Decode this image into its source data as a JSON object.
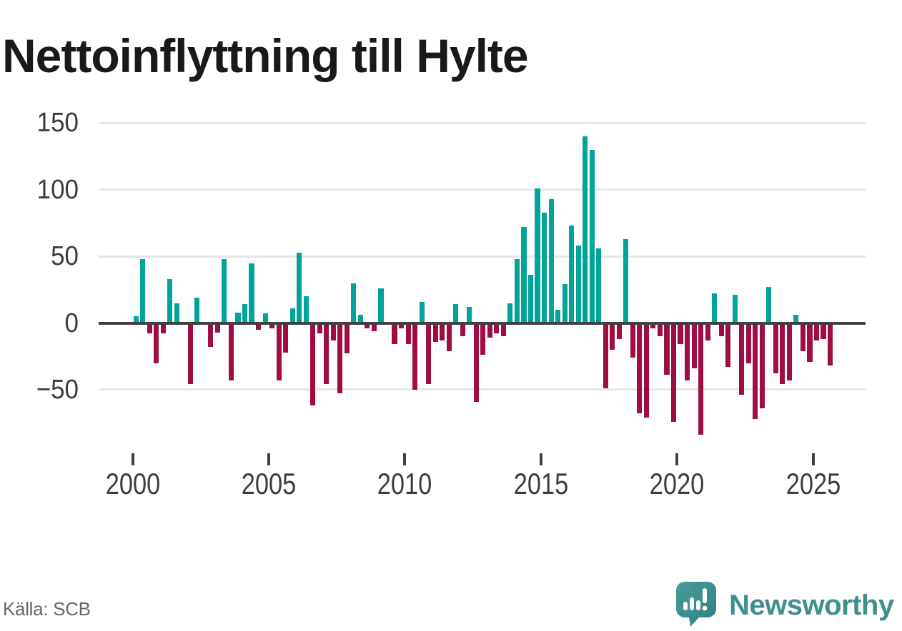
{
  "title": "Nettoinflyttning till Hylte",
  "source": "Källa: SCB",
  "branding": {
    "name": "Newsworthy",
    "logo_icon": "speech-bubble-bar-chart-icon",
    "color": "#3f8f8f"
  },
  "chart_data": {
    "type": "bar",
    "title": "Nettoinflyttning till Hylte",
    "frequency": "quarterly",
    "x_start": "2000-Q1",
    "x_end": "2025-Q3",
    "x_tick_labels": [
      "2000",
      "2005",
      "2010",
      "2015",
      "2020",
      "2025"
    ],
    "y_ticks": [
      150,
      100,
      50,
      0,
      -50
    ],
    "y_tick_labels": [
      "150",
      "100",
      "50",
      "0",
      "−50"
    ],
    "ylim": [
      -90,
      165
    ],
    "grid": "horizontal",
    "legend": "none",
    "positive_color": "#01a49b",
    "negative_color": "#a00d45",
    "values_by_year": [
      {
        "year": 2000,
        "q": [
          5,
          48,
          -8,
          -30
        ]
      },
      {
        "year": 2001,
        "q": [
          -8,
          33,
          15,
          0
        ]
      },
      {
        "year": 2002,
        "q": [
          -46,
          19,
          0,
          -18
        ]
      },
      {
        "year": 2003,
        "q": [
          -7,
          48,
          -43,
          8
        ]
      },
      {
        "year": 2004,
        "q": [
          14,
          45,
          -5,
          7
        ]
      },
      {
        "year": 2005,
        "q": [
          -4,
          -43,
          -22,
          11
        ]
      },
      {
        "year": 2006,
        "q": [
          53,
          20,
          -62,
          -8
        ]
      },
      {
        "year": 2007,
        "q": [
          -46,
          -13,
          -53,
          -23
        ]
      },
      {
        "year": 2008,
        "q": [
          30,
          6,
          -4,
          -6
        ]
      },
      {
        "year": 2009,
        "q": [
          26,
          0,
          -16,
          -4
        ]
      },
      {
        "year": 2010,
        "q": [
          -16,
          -50,
          16,
          -46
        ]
      },
      {
        "year": 2011,
        "q": [
          -14,
          -13,
          -21,
          14
        ]
      },
      {
        "year": 2012,
        "q": [
          -10,
          12,
          -59,
          -24
        ]
      },
      {
        "year": 2013,
        "q": [
          -11,
          -8,
          -10,
          15
        ]
      },
      {
        "year": 2014,
        "q": [
          48,
          72,
          36,
          101
        ]
      },
      {
        "year": 2015,
        "q": [
          83,
          93,
          10,
          29
        ]
      },
      {
        "year": 2016,
        "q": [
          73,
          58,
          140,
          130
        ]
      },
      {
        "year": 2017,
        "q": [
          56,
          -49,
          -20,
          -12
        ]
      },
      {
        "year": 2018,
        "q": [
          63,
          -26,
          -68,
          -71
        ]
      },
      {
        "year": 2019,
        "q": [
          -4,
          -10,
          -39,
          -74
        ]
      },
      {
        "year": 2020,
        "q": [
          -16,
          -43,
          -34,
          -84
        ]
      },
      {
        "year": 2021,
        "q": [
          -13,
          22,
          -10,
          -33
        ]
      },
      {
        "year": 2022,
        "q": [
          21,
          -54,
          -30,
          -72
        ]
      },
      {
        "year": 2023,
        "q": [
          -64,
          27,
          -38,
          -46
        ]
      },
      {
        "year": 2024,
        "q": [
          -43,
          6,
          -21,
          -29
        ]
      },
      {
        "year": 2025,
        "q": [
          -13,
          -12,
          -32
        ]
      }
    ]
  }
}
